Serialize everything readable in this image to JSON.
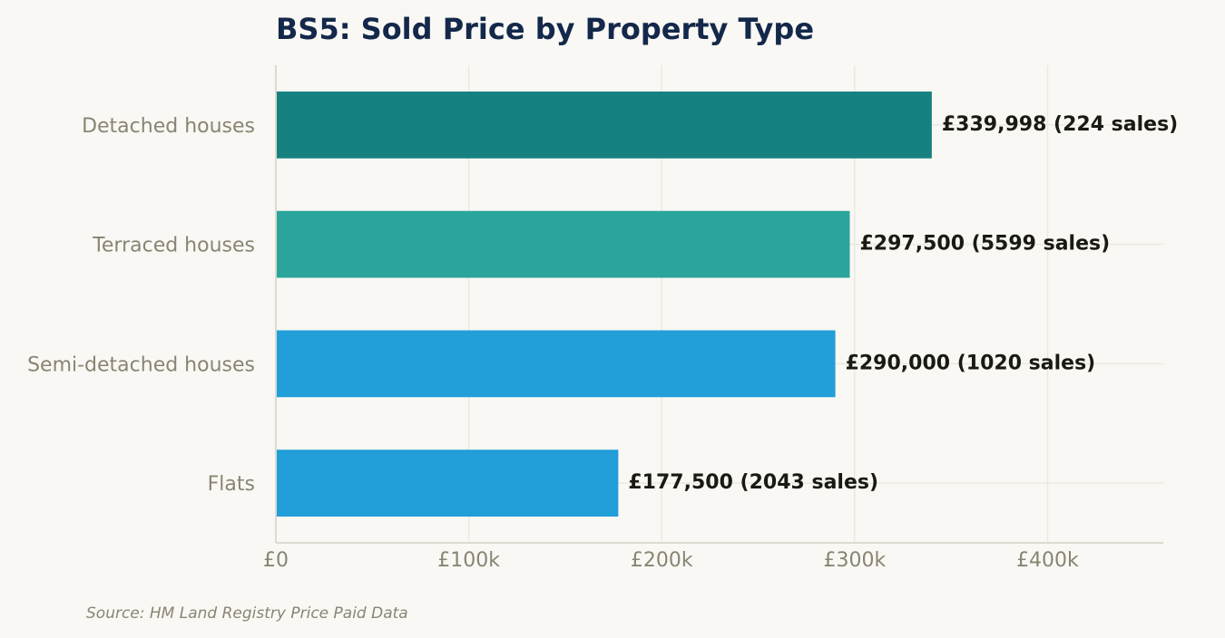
{
  "chart_data": {
    "type": "bar",
    "orientation": "horizontal",
    "title": "BS5: Sold Price by Property Type",
    "xlabel": "",
    "ylabel": "",
    "categories": [
      "Detached houses",
      "Terraced houses",
      "Semi-detached houses",
      "Flats"
    ],
    "values": [
      339998,
      297500,
      290000,
      177500
    ],
    "sales": [
      224,
      5599,
      1020,
      2043
    ],
    "value_labels": [
      "£339,998  (224 sales)",
      "£297,500  (5599 sales)",
      "£290,000  (1020 sales)",
      "£177,500  (2043 sales)"
    ],
    "bar_colors": [
      "#178181",
      "#2ba59c",
      "#229ed9",
      "#229ed9"
    ],
    "xlim": [
      0,
      460000
    ],
    "xticks": [
      0,
      100000,
      200000,
      300000,
      400000
    ],
    "xtick_labels": [
      "£0",
      "£100k",
      "£200k",
      "£300k",
      "£400k"
    ],
    "grid": true,
    "legend": "none",
    "source": "Source: HM Land Registry Price Paid Data"
  }
}
